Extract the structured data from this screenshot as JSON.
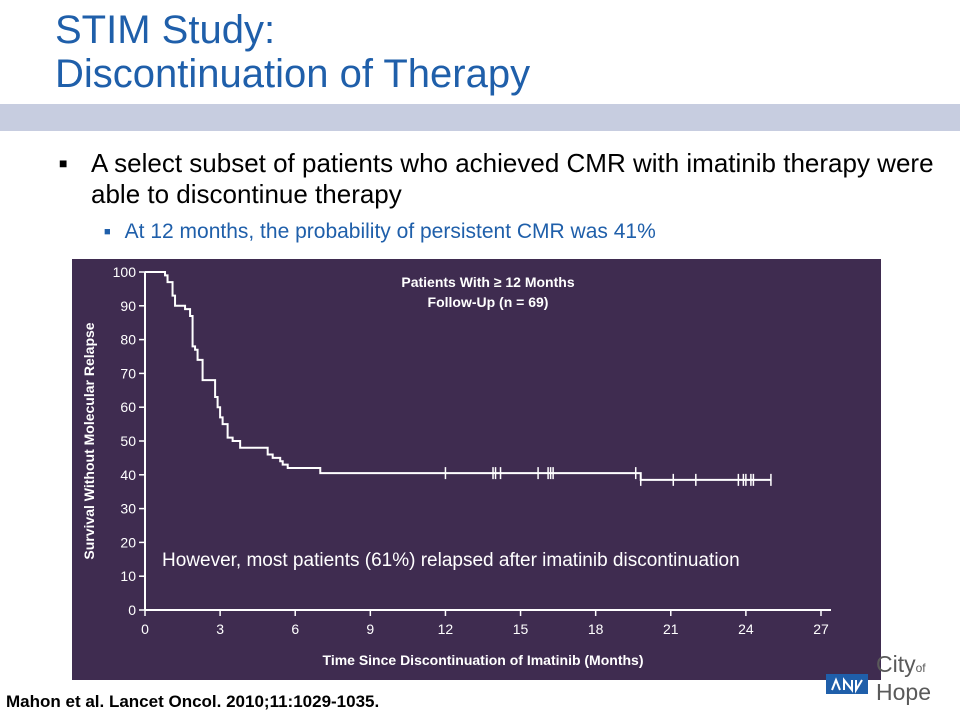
{
  "slide": {
    "title_line1": "STIM Study:",
    "title_line2": "Discontinuation of Therapy",
    "bullet_main": "A select subset of patients who achieved CMR with imatinib therapy were able to discontinue therapy",
    "bullet_sub": "At 12 months, the probability of persistent CMR was 41%",
    "citation": "Mahon et al. Lancet Oncol. 2010;11:1029-1035.",
    "logo": {
      "word1": "City",
      "word2": "of",
      "word3": "Hope",
      "icon": "city-of-hope-logo-icon"
    }
  },
  "colors": {
    "title": "#1f5faa",
    "title_bar": "#c7cde0",
    "chart_bg": "#3f2c50",
    "chart_fg": "#ffffff"
  },
  "chart_data": {
    "type": "line",
    "title": "Patients With ≥ 12 Months",
    "subtitle": "Follow-Up (n = 69)",
    "annotation": "However, most patients (61%) relapsed after imatinib discontinuation",
    "xlabel": "Time Since Discontinuation of Imatinib (Months)",
    "ylabel": "Survival Without Molecular Relapse",
    "xlim": [
      0,
      27
    ],
    "ylim": [
      0,
      100
    ],
    "xticks": [
      0,
      3,
      6,
      9,
      12,
      15,
      18,
      21,
      24,
      27
    ],
    "yticks": [
      0,
      10,
      20,
      30,
      40,
      50,
      60,
      70,
      80,
      90,
      100
    ],
    "grid": false,
    "series": [
      {
        "step": [
          [
            0,
            100
          ],
          [
            0.7,
            100
          ],
          [
            0.8,
            99
          ],
          [
            0.9,
            97
          ],
          [
            1.1,
            93
          ],
          [
            1.2,
            90
          ],
          [
            1.6,
            89
          ],
          [
            1.8,
            87
          ],
          [
            1.9,
            78
          ],
          [
            2.0,
            77
          ],
          [
            2.1,
            74
          ],
          [
            2.3,
            68
          ],
          [
            2.7,
            68
          ],
          [
            2.8,
            63
          ],
          [
            2.9,
            60
          ],
          [
            3.0,
            57
          ],
          [
            3.1,
            55
          ],
          [
            3.3,
            51
          ],
          [
            3.5,
            50
          ],
          [
            3.8,
            48
          ],
          [
            4.8,
            48
          ],
          [
            4.9,
            46
          ],
          [
            5.1,
            45
          ],
          [
            5.4,
            44
          ],
          [
            5.5,
            43
          ],
          [
            5.7,
            42
          ],
          [
            6.9,
            42
          ],
          [
            7.0,
            40.5
          ],
          [
            19.6,
            40.5
          ],
          [
            19.8,
            38.5
          ],
          [
            25.0,
            38.5
          ]
        ],
        "censored": [
          [
            12.0,
            40.5
          ],
          [
            13.9,
            40.5
          ],
          [
            14.0,
            40.5
          ],
          [
            14.2,
            40.5
          ],
          [
            15.7,
            40.5
          ],
          [
            16.1,
            40.5
          ],
          [
            16.2,
            40.5
          ],
          [
            16.3,
            40.5
          ],
          [
            19.6,
            40.5
          ],
          [
            19.8,
            38.5
          ],
          [
            21.1,
            38.5
          ],
          [
            22.0,
            38.5
          ],
          [
            23.7,
            38.5
          ],
          [
            23.9,
            38.5
          ],
          [
            24.0,
            38.5
          ],
          [
            24.2,
            38.5
          ],
          [
            24.3,
            38.5
          ],
          [
            25.0,
            38.5
          ]
        ]
      }
    ]
  }
}
